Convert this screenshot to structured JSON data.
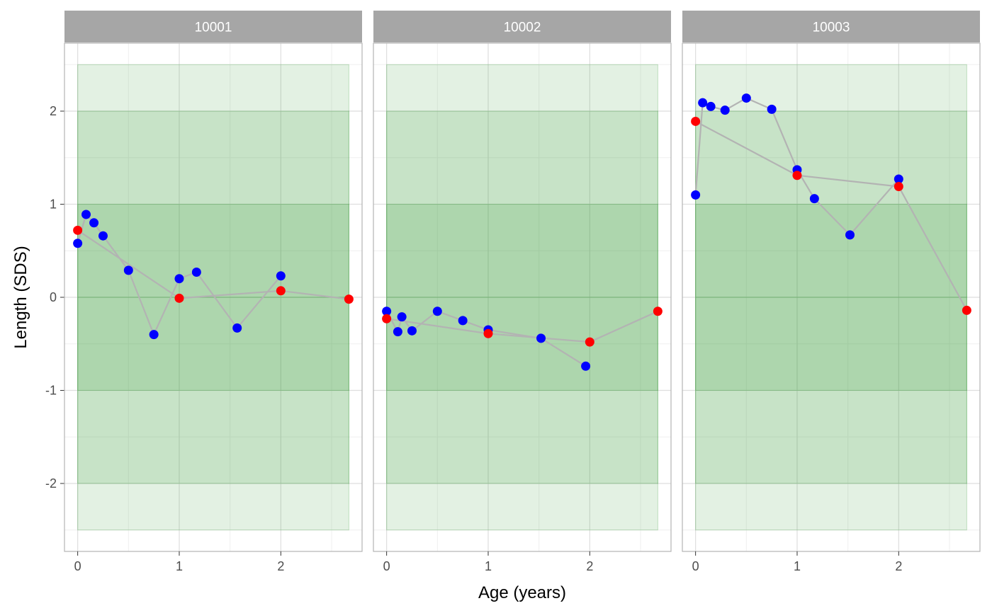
{
  "chart_data": {
    "type": "scatter",
    "facet_by": "id",
    "xlabel": "Age (years)",
    "ylabel": "Length (SDS)",
    "xlim": [
      -0.13,
      2.8
    ],
    "ylim": [
      -2.73,
      2.73
    ],
    "x_ticks": [
      0,
      1,
      2
    ],
    "y_ticks": [
      -2,
      -1,
      0,
      1,
      2
    ],
    "grid": true,
    "colors": {
      "band": "#3a9a3a",
      "line": "#b3b3b3",
      "measured": "#0000ff",
      "predicted": "#ff0000",
      "strip": "#a6a6a6",
      "panel_border": "#b3b3b3",
      "grid_major": "#dedede",
      "grid_minor": "#efefef"
    },
    "bands": [
      {
        "y_range": [
          -2.5,
          2.5
        ],
        "x_range": [
          0,
          2.67
        ],
        "opacity": 0.14
      },
      {
        "y_range": [
          -2,
          2
        ],
        "x_range": [
          0,
          2.67
        ],
        "opacity": 0.16
      },
      {
        "y_range": [
          -1,
          1
        ],
        "x_range": [
          0,
          2.67
        ],
        "opacity": 0.18
      }
    ],
    "reference_line": 0,
    "panels": [
      {
        "label": "10001",
        "measured": [
          [
            0.0,
            0.58
          ],
          [
            0.083,
            0.89
          ],
          [
            0.16,
            0.8
          ],
          [
            0.25,
            0.66
          ],
          [
            0.5,
            0.29
          ],
          [
            0.75,
            -0.4
          ],
          [
            1.0,
            0.2
          ],
          [
            1.17,
            0.27
          ],
          [
            1.57,
            -0.33
          ],
          [
            2.0,
            0.23
          ]
        ],
        "predicted": [
          [
            0.0,
            0.72
          ],
          [
            1.0,
            -0.01
          ],
          [
            2.0,
            0.07
          ],
          [
            2.67,
            -0.02
          ]
        ]
      },
      {
        "label": "10002",
        "measured": [
          [
            0.0,
            -0.15
          ],
          [
            0.11,
            -0.37
          ],
          [
            0.15,
            -0.21
          ],
          [
            0.25,
            -0.36
          ],
          [
            0.5,
            -0.15
          ],
          [
            0.75,
            -0.25
          ],
          [
            1.0,
            -0.35
          ],
          [
            1.52,
            -0.44
          ],
          [
            1.96,
            -0.74
          ]
        ],
        "predicted": [
          [
            0.0,
            -0.23
          ],
          [
            1.0,
            -0.39
          ],
          [
            2.0,
            -0.48
          ],
          [
            2.67,
            -0.15
          ]
        ]
      },
      {
        "label": "10003",
        "measured": [
          [
            0.0,
            1.1
          ],
          [
            0.07,
            2.09
          ],
          [
            0.15,
            2.05
          ],
          [
            0.29,
            2.01
          ],
          [
            0.5,
            2.14
          ],
          [
            0.75,
            2.02
          ],
          [
            1.0,
            1.37
          ],
          [
            1.17,
            1.06
          ],
          [
            1.52,
            0.67
          ],
          [
            2.0,
            1.27
          ]
        ],
        "predicted": [
          [
            0.0,
            1.89
          ],
          [
            1.0,
            1.31
          ],
          [
            2.0,
            1.19
          ],
          [
            2.67,
            -0.14
          ]
        ]
      }
    ]
  }
}
